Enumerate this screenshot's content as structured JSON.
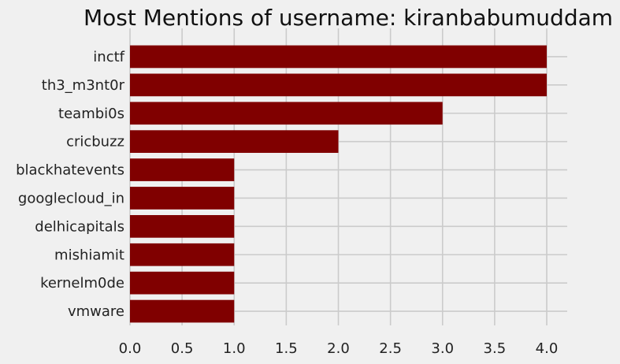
{
  "chart_data": {
    "type": "bar",
    "orientation": "horizontal",
    "title": "Most Mentions of username: kiranbabumuddam",
    "categories": [
      "inctf",
      "th3_m3nt0r",
      "teambi0s",
      "cricbuzz",
      "blackhatevents",
      "googlecloud_in",
      "delhicapitals",
      "mishiamit",
      "kernelm0de",
      "vmware"
    ],
    "values": [
      4,
      4,
      3,
      2,
      1,
      1,
      1,
      1,
      1,
      1
    ],
    "xlabel": "",
    "ylabel": "",
    "xlim": [
      0,
      4.2
    ],
    "x_ticks": [
      "0.0",
      "0.5",
      "1.0",
      "1.5",
      "2.0",
      "2.5",
      "3.0",
      "3.5",
      "4.0"
    ],
    "grid": true,
    "bar_color": "#800000",
    "background_color": "#f0f0f0",
    "grid_color": "#cbcbcb"
  }
}
